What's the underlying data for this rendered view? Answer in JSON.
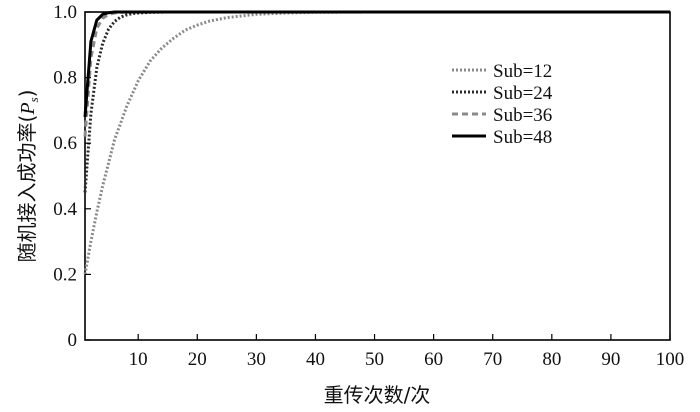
{
  "chart_data": {
    "type": "line",
    "xlabel": "重传次数/次",
    "ylabel_prefix": "随机接入成功率(",
    "ylabel_symbol": "P",
    "ylabel_subscript": "s",
    "ylabel_suffix": ")",
    "xlim": [
      1,
      100
    ],
    "ylim": [
      0,
      1.0
    ],
    "x_ticks": [
      10,
      20,
      30,
      40,
      50,
      60,
      70,
      80,
      90,
      100
    ],
    "y_ticks": [
      0,
      0.2,
      0.4,
      0.6,
      0.8,
      1.0
    ],
    "x_tick_labels": [
      "10",
      "20",
      "30",
      "40",
      "50",
      "60",
      "70",
      "80",
      "90",
      "100"
    ],
    "y_tick_labels": [
      "0",
      "0.2",
      "0.4",
      "0.6",
      "0.8",
      "1.0"
    ],
    "grid": false,
    "legend_position": "top-right",
    "series": [
      {
        "name": "Sub=12",
        "style": "dotted",
        "color": "#8a8a8a",
        "x": [
          1,
          2,
          3,
          4,
          5,
          6,
          7,
          8,
          9,
          10,
          12,
          14,
          16,
          18,
          20,
          22,
          25,
          30,
          35,
          40,
          50,
          60,
          80,
          100
        ],
        "y": [
          0.2,
          0.3,
          0.39,
          0.47,
          0.54,
          0.61,
          0.66,
          0.71,
          0.75,
          0.79,
          0.85,
          0.89,
          0.92,
          0.945,
          0.96,
          0.972,
          0.983,
          0.993,
          0.997,
          0.999,
          1.0,
          1.0,
          1.0,
          1.0
        ]
      },
      {
        "name": "Sub=24",
        "style": "dotted",
        "color": "#2a2a2a",
        "x": [
          1,
          2,
          3,
          4,
          5,
          6,
          7,
          8,
          9,
          10,
          12,
          15,
          20,
          30,
          50,
          100
        ],
        "y": [
          0.45,
          0.69,
          0.83,
          0.905,
          0.948,
          0.971,
          0.984,
          0.991,
          0.995,
          0.997,
          0.999,
          1.0,
          1.0,
          1.0,
          1.0,
          1.0
        ]
      },
      {
        "name": "Sub=36",
        "style": "dashed",
        "color": "#8a8a8a",
        "x": [
          1,
          2,
          3,
          4,
          5,
          6,
          7,
          8,
          10,
          15,
          20,
          100
        ],
        "y": [
          0.62,
          0.86,
          0.95,
          0.981,
          0.993,
          0.997,
          0.999,
          1.0,
          1.0,
          1.0,
          1.0,
          1.0
        ]
      },
      {
        "name": "Sub=48",
        "style": "solid",
        "color": "#000000",
        "x": [
          1,
          2,
          3,
          4,
          5,
          6,
          7,
          8,
          10,
          20,
          100
        ],
        "y": [
          0.68,
          0.91,
          0.975,
          0.993,
          0.998,
          1.0,
          1.0,
          1.0,
          1.0,
          1.0,
          1.0
        ]
      }
    ]
  }
}
